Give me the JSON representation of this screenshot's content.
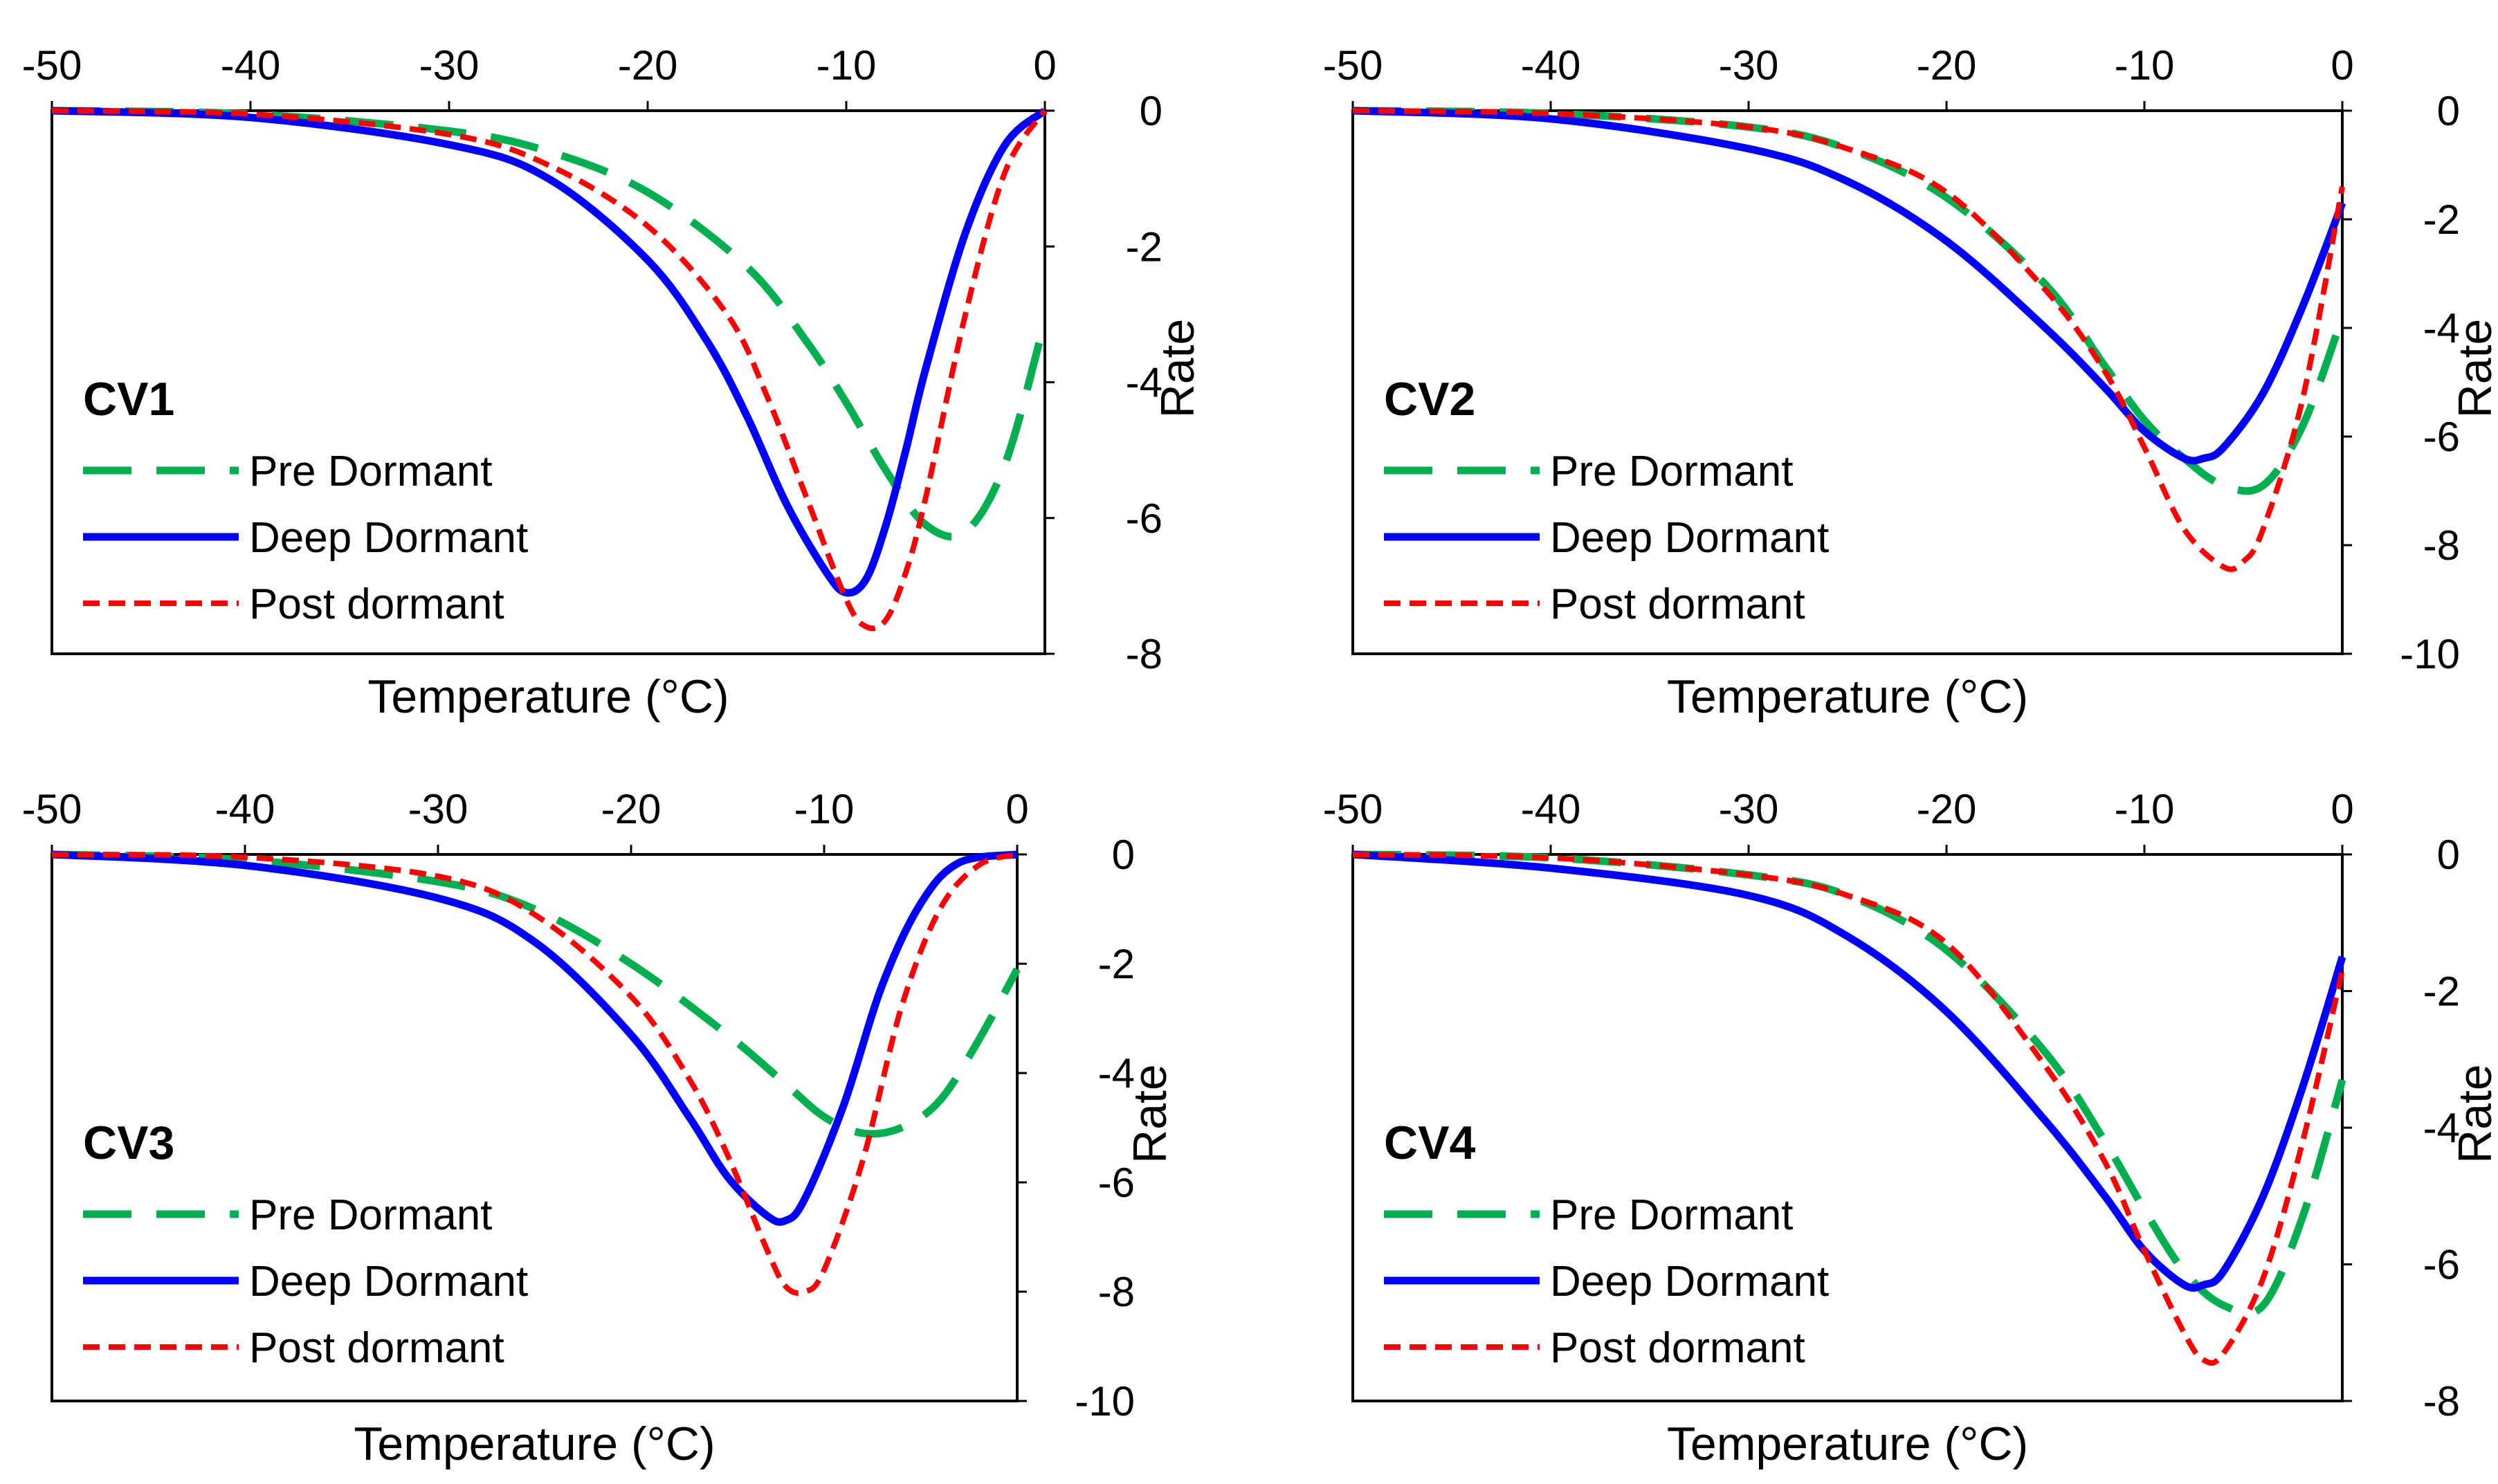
{
  "chart_data": [
    {
      "type": "line",
      "title": "CV1",
      "xlabel": "Temperature (°C)",
      "ylabel": "Rate",
      "xlim": [
        -50,
        0
      ],
      "ylim": [
        -8,
        0
      ],
      "x_ticks": [
        "-50",
        "-40",
        "-30",
        "-20",
        "-10",
        "0"
      ],
      "y_ticks": [
        "0",
        "-2",
        "-4",
        "-6",
        "-8"
      ],
      "x_axis_position": "top",
      "y_axis_position": "right",
      "legend_position": "left",
      "series": [
        {
          "name": "Pre Dormant",
          "color": "#00b050",
          "style": "long-dash",
          "x": [
            -50,
            -40,
            -30,
            -25,
            -20,
            -15,
            -12,
            -10,
            -8,
            -6,
            -4,
            -2,
            0
          ],
          "y": [
            0,
            -0.05,
            -0.3,
            -0.6,
            -1.2,
            -2.3,
            -3.4,
            -4.3,
            -5.3,
            -6.1,
            -6.2,
            -5.2,
            -3.1
          ]
        },
        {
          "name": "Deep Dormant",
          "color": "#0000ff",
          "style": "solid",
          "x": [
            -50,
            -40,
            -30,
            -25,
            -20,
            -17,
            -15,
            -13,
            -11,
            -10,
            -9,
            -8,
            -7,
            -6,
            -4,
            -2,
            0
          ],
          "y": [
            0,
            -0.1,
            -0.5,
            -1.0,
            -2.2,
            -3.4,
            -4.5,
            -5.8,
            -6.8,
            -7.1,
            -6.9,
            -6.1,
            -5.0,
            -3.8,
            -1.8,
            -0.5,
            0
          ]
        },
        {
          "name": "Post dormant",
          "color": "#ff0000",
          "style": "short-dash",
          "x": [
            -50,
            -40,
            -30,
            -25,
            -20,
            -16,
            -14,
            -12,
            -10,
            -9,
            -8,
            -7,
            -6,
            -4,
            -2,
            0
          ],
          "y": [
            0,
            -0.05,
            -0.35,
            -0.8,
            -1.7,
            -3.0,
            -4.2,
            -5.7,
            -7.2,
            -7.6,
            -7.5,
            -6.8,
            -5.7,
            -3.0,
            -0.9,
            0
          ]
        }
      ]
    },
    {
      "type": "line",
      "title": "CV2",
      "xlabel": "Temperature (°C)",
      "ylabel": "Rate",
      "xlim": [
        -50,
        0
      ],
      "ylim": [
        -10,
        0
      ],
      "x_ticks": [
        "-50",
        "-40",
        "-30",
        "-20",
        "-10",
        "0"
      ],
      "y_ticks": [
        "0",
        "-2",
        "-4",
        "-6",
        "-8",
        "-10"
      ],
      "x_axis_position": "top",
      "y_axis_position": "right",
      "legend_position": "left",
      "series": [
        {
          "name": "Pre Dormant",
          "color": "#00b050",
          "style": "long-dash",
          "x": [
            -50,
            -40,
            -30,
            -25,
            -20,
            -15,
            -12,
            -10,
            -8,
            -6,
            -4,
            -2,
            0
          ],
          "y": [
            0,
            -0.05,
            -0.3,
            -0.7,
            -1.6,
            -3.2,
            -4.7,
            -5.7,
            -6.4,
            -6.9,
            -6.9,
            -5.8,
            -3.8
          ]
        },
        {
          "name": "Deep Dormant",
          "color": "#0000ff",
          "style": "solid",
          "x": [
            -50,
            -40,
            -30,
            -25,
            -20,
            -15,
            -12,
            -10,
            -8,
            -7,
            -6,
            -4,
            -2,
            0
          ],
          "y": [
            0,
            -0.15,
            -0.7,
            -1.3,
            -2.4,
            -4.0,
            -5.1,
            -5.9,
            -6.4,
            -6.4,
            -6.2,
            -5.2,
            -3.6,
            -1.7
          ]
        },
        {
          "name": "Post dormant",
          "color": "#ff0000",
          "style": "short-dash",
          "x": [
            -50,
            -40,
            -30,
            -25,
            -20,
            -15,
            -12,
            -10,
            -8,
            -6,
            -5,
            -4,
            -2,
            0
          ],
          "y": [
            0,
            -0.05,
            -0.3,
            -0.7,
            -1.5,
            -3.3,
            -4.8,
            -6.2,
            -7.7,
            -8.4,
            -8.3,
            -7.7,
            -5.3,
            -1.4
          ]
        }
      ]
    },
    {
      "type": "line",
      "title": "CV3",
      "xlabel": "Temperature (°C)",
      "ylabel": "Rate",
      "xlim": [
        -50,
        0
      ],
      "ylim": [
        -10,
        0
      ],
      "x_ticks": [
        "-50",
        "-40",
        "-30",
        "-20",
        "-10",
        "0"
      ],
      "y_ticks": [
        "0",
        "-2",
        "-4",
        "-6",
        "-8",
        "-10"
      ],
      "x_axis_position": "top",
      "y_axis_position": "right",
      "legend_position": "left",
      "series": [
        {
          "name": "Pre Dormant",
          "color": "#00b050",
          "style": "long-dash",
          "x": [
            -50,
            -40,
            -30,
            -25,
            -20,
            -15,
            -12,
            -10,
            -8,
            -6,
            -4,
            -2,
            0
          ],
          "y": [
            0,
            -0.1,
            -0.5,
            -1.0,
            -2.0,
            -3.3,
            -4.2,
            -4.8,
            -5.1,
            -5.0,
            -4.5,
            -3.4,
            -2.1
          ]
        },
        {
          "name": "Deep Dormant",
          "color": "#0000ff",
          "style": "solid",
          "x": [
            -50,
            -40,
            -30,
            -25,
            -20,
            -17,
            -15,
            -13,
            -12,
            -11,
            -9,
            -7,
            -5,
            -3,
            0
          ],
          "y": [
            0,
            -0.2,
            -0.8,
            -1.6,
            -3.3,
            -4.8,
            -5.9,
            -6.6,
            -6.7,
            -6.3,
            -4.6,
            -2.4,
            -0.9,
            -0.15,
            0
          ]
        },
        {
          "name": "Post dormant",
          "color": "#ff0000",
          "style": "short-dash",
          "x": [
            -50,
            -40,
            -30,
            -25,
            -20,
            -17,
            -15,
            -13,
            -12,
            -11,
            -10,
            -8,
            -6,
            -4,
            -2,
            0
          ],
          "y": [
            0,
            -0.05,
            -0.4,
            -1.1,
            -2.6,
            -4.1,
            -5.5,
            -7.2,
            -7.9,
            -8.0,
            -7.6,
            -5.6,
            -2.8,
            -1.0,
            -0.2,
            0
          ]
        }
      ]
    },
    {
      "type": "line",
      "title": "CV4",
      "xlabel": "Temperature (°C)",
      "ylabel": "Rate",
      "xlim": [
        -50,
        0
      ],
      "ylim": [
        -8,
        0
      ],
      "x_ticks": [
        "-50",
        "-40",
        "-30",
        "-20",
        "-10",
        "0"
      ],
      "y_ticks": [
        "0",
        "-2",
        "-4",
        "-6",
        "-8"
      ],
      "x_axis_position": "top",
      "y_axis_position": "right",
      "legend_position": "left",
      "series": [
        {
          "name": "Pre Dormant",
          "color": "#00b050",
          "style": "long-dash",
          "x": [
            -50,
            -40,
            -30,
            -25,
            -20,
            -15,
            -12,
            -10,
            -8,
            -6,
            -4,
            -2,
            0
          ],
          "y": [
            0,
            -0.05,
            -0.3,
            -0.6,
            -1.4,
            -2.9,
            -4.2,
            -5.2,
            -6.1,
            -6.6,
            -6.6,
            -5.3,
            -3.3
          ]
        },
        {
          "name": "Deep Dormant",
          "color": "#0000ff",
          "style": "solid",
          "x": [
            -50,
            -40,
            -30,
            -25,
            -20,
            -15,
            -12,
            -10,
            -8,
            -7,
            -6,
            -4,
            -2,
            0
          ],
          "y": [
            0,
            -0.2,
            -0.6,
            -1.2,
            -2.3,
            -3.9,
            -5.0,
            -5.8,
            -6.3,
            -6.3,
            -6.1,
            -5.0,
            -3.4,
            -1.5
          ]
        },
        {
          "name": "Post dormant",
          "color": "#ff0000",
          "style": "short-dash",
          "x": [
            -50,
            -40,
            -30,
            -25,
            -20,
            -15,
            -12,
            -10,
            -8,
            -7,
            -6,
            -4,
            -2,
            0
          ],
          "y": [
            0,
            -0.05,
            -0.3,
            -0.6,
            -1.3,
            -3.1,
            -4.5,
            -5.8,
            -7.0,
            -7.4,
            -7.3,
            -6.2,
            -4.2,
            -1.7
          ]
        }
      ]
    }
  ]
}
